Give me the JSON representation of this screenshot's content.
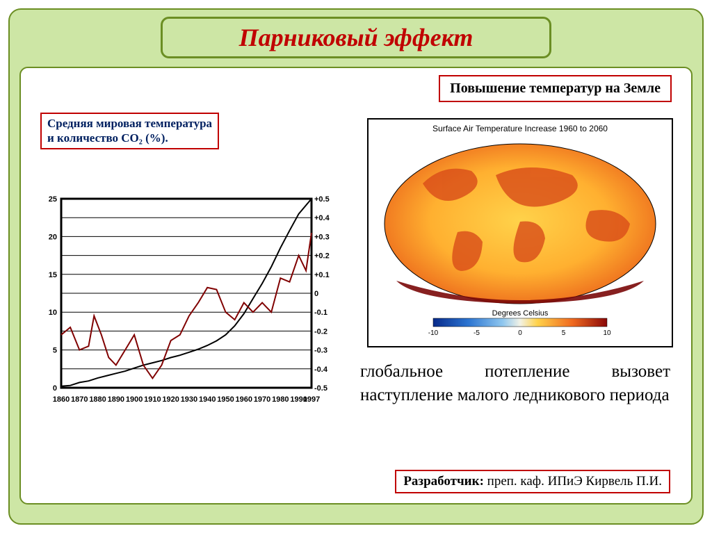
{
  "title": "Парниковый эффект",
  "left_caption_l1": "Средняя мировая температура",
  "left_caption_l2": " и количество CO₂ (%).",
  "right_caption": "Повышение температур на Земле",
  "globe_title": "Surface Air Temperature Increase 1960 to 2060",
  "globe_scale_label": "Degrees Celsius",
  "globe_scale_ticks": [
    "-10",
    "-5",
    "0",
    "5",
    "10"
  ],
  "body_text": "глобальное потепление вызовет наступление малого ледникового периода",
  "footer_label": "Разработчик: ",
  "footer_value": "преп. каф. ИПиЭ  Кирвель П.И.",
  "chart": {
    "type": "line",
    "x_ticks": [
      "1860",
      "1870",
      "1880",
      "1890",
      "1900",
      "1910",
      "1920",
      "1930",
      "1940",
      "1950",
      "1960",
      "1970",
      "1980",
      "1990",
      "1997"
    ],
    "y_left_ticks": [
      "25",
      "20",
      "15",
      "10",
      "5",
      "0"
    ],
    "y_right_ticks": [
      "+0.5",
      "+0.4",
      "+0.3",
      "+0.2",
      "+0.1",
      "0",
      "-0.1",
      "-0.2",
      "-0.3",
      "-0.4",
      "-0.5"
    ],
    "xlim": [
      1860,
      1997
    ],
    "ylim_left": [
      0,
      25
    ],
    "ylim_right": [
      -0.5,
      0.5
    ],
    "grid_color": "#000000",
    "line1_color": "#000000",
    "line2_color": "#800000",
    "line_width": 2,
    "background": "#ffffff",
    "tick_fontsize": 11,
    "series_co2": [
      [
        1860,
        0.2
      ],
      [
        1865,
        0.3
      ],
      [
        1870,
        0.7
      ],
      [
        1875,
        0.9
      ],
      [
        1880,
        1.3
      ],
      [
        1885,
        1.6
      ],
      [
        1890,
        1.9
      ],
      [
        1895,
        2.2
      ],
      [
        1900,
        2.6
      ],
      [
        1905,
        3.0
      ],
      [
        1910,
        3.3
      ],
      [
        1915,
        3.6
      ],
      [
        1920,
        4.0
      ],
      [
        1925,
        4.3
      ],
      [
        1930,
        4.7
      ],
      [
        1935,
        5.1
      ],
      [
        1940,
        5.6
      ],
      [
        1945,
        6.2
      ],
      [
        1950,
        7.0
      ],
      [
        1955,
        8.2
      ],
      [
        1960,
        9.8
      ],
      [
        1965,
        11.8
      ],
      [
        1970,
        13.8
      ],
      [
        1975,
        16.0
      ],
      [
        1980,
        18.5
      ],
      [
        1985,
        20.8
      ],
      [
        1990,
        23.0
      ],
      [
        1997,
        25.0
      ]
    ],
    "series_temp": [
      [
        1860,
        -0.22
      ],
      [
        1865,
        -0.18
      ],
      [
        1870,
        -0.3
      ],
      [
        1875,
        -0.28
      ],
      [
        1878,
        -0.12
      ],
      [
        1882,
        -0.22
      ],
      [
        1886,
        -0.34
      ],
      [
        1890,
        -0.38
      ],
      [
        1895,
        -0.3
      ],
      [
        1900,
        -0.22
      ],
      [
        1905,
        -0.38
      ],
      [
        1910,
        -0.45
      ],
      [
        1915,
        -0.38
      ],
      [
        1920,
        -0.25
      ],
      [
        1925,
        -0.22
      ],
      [
        1930,
        -0.12
      ],
      [
        1935,
        -0.05
      ],
      [
        1940,
        0.03
      ],
      [
        1945,
        0.02
      ],
      [
        1950,
        -0.1
      ],
      [
        1955,
        -0.14
      ],
      [
        1960,
        -0.05
      ],
      [
        1965,
        -0.1
      ],
      [
        1970,
        -0.05
      ],
      [
        1975,
        -0.1
      ],
      [
        1980,
        0.08
      ],
      [
        1985,
        0.06
      ],
      [
        1990,
        0.2
      ],
      [
        1994,
        0.12
      ],
      [
        1997,
        0.32
      ]
    ]
  },
  "colors": {
    "slide_bg": "#cde6a5",
    "border": "#6b8e23",
    "title_text": "#c00000",
    "caption_border": "#c00000",
    "caption_text": "#002060"
  }
}
